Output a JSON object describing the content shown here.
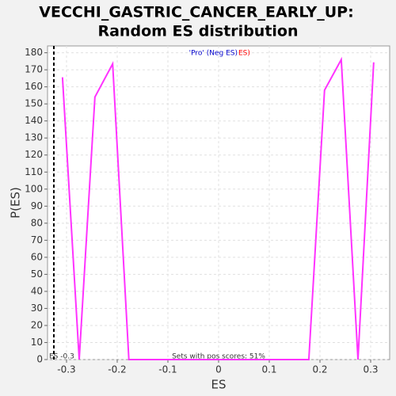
{
  "chart_data": {
    "type": "line",
    "title": "VECCHI_GASTRIC_CANCER_EARLY_UP:",
    "subtitle": "Random ES distribution",
    "x_label": "ES",
    "y_label": "P(ES)",
    "legend_blue": "'Pro' (Neg ES)",
    "legend_red": "ES)",
    "annotation": "Sets with pos scores: 51%",
    "marker_label": "ES -0.3",
    "marker_x": -0.325,
    "x": [
      -0.308,
      -0.275,
      -0.244,
      -0.209,
      -0.177,
      0.178,
      0.209,
      0.242,
      0.275,
      0.306
    ],
    "series": [
      {
        "color": "#ff33ff",
        "values": [
          165.6,
          0,
          154,
          173.5,
          0,
          0,
          158,
          176,
          0,
          174.4
        ]
      }
    ],
    "xlim": [
      -0.3375,
      0.3375
    ],
    "ylim": [
      0,
      184
    ],
    "xticks": [
      -0.3,
      -0.2,
      -0.1,
      0.0,
      0.1,
      0.2,
      0.3
    ],
    "yticks": [
      0,
      10,
      20,
      30,
      40,
      50,
      60,
      70,
      80,
      90,
      100,
      110,
      120,
      130,
      140,
      150,
      160,
      170,
      180
    ],
    "grid": true
  }
}
